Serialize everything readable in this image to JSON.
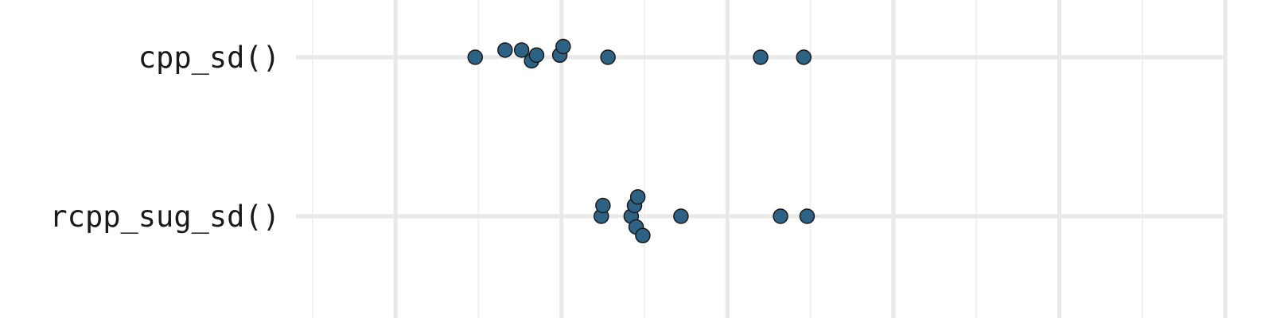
{
  "chart_data": {
    "type": "scatter",
    "orientation": "horizontal",
    "title": "",
    "xlabel": "",
    "ylabel": "",
    "categories": [
      "cpp_sd()",
      "rcpp_sug_sd()"
    ],
    "xlim": [
      -16,
      40
    ],
    "x_major_ticks": [
      -10,
      0,
      10,
      20,
      30,
      40
    ],
    "x_minor_ticks": [
      -15,
      -5,
      5,
      15,
      25,
      35
    ],
    "point_color": "#2e6284",
    "series": [
      {
        "name": "cpp_sd()",
        "x": [
          -5.2,
          -3.4,
          -2.4,
          -1.8,
          -1.5,
          -0.1,
          0.1,
          2.8,
          12.0,
          14.6
        ],
        "jitter": [
          0,
          0.1,
          0.1,
          -0.05,
          0.03,
          0.03,
          0.15,
          0,
          0,
          0
        ]
      },
      {
        "name": "rcpp_sug_sd()",
        "x": [
          2.4,
          2.5,
          4.2,
          4.4,
          4.5,
          4.6,
          4.9,
          7.2,
          13.2,
          14.8
        ],
        "jitter": [
          0,
          0.15,
          0,
          0.15,
          -0.15,
          0.27,
          -0.27,
          0,
          0,
          0
        ]
      }
    ]
  }
}
